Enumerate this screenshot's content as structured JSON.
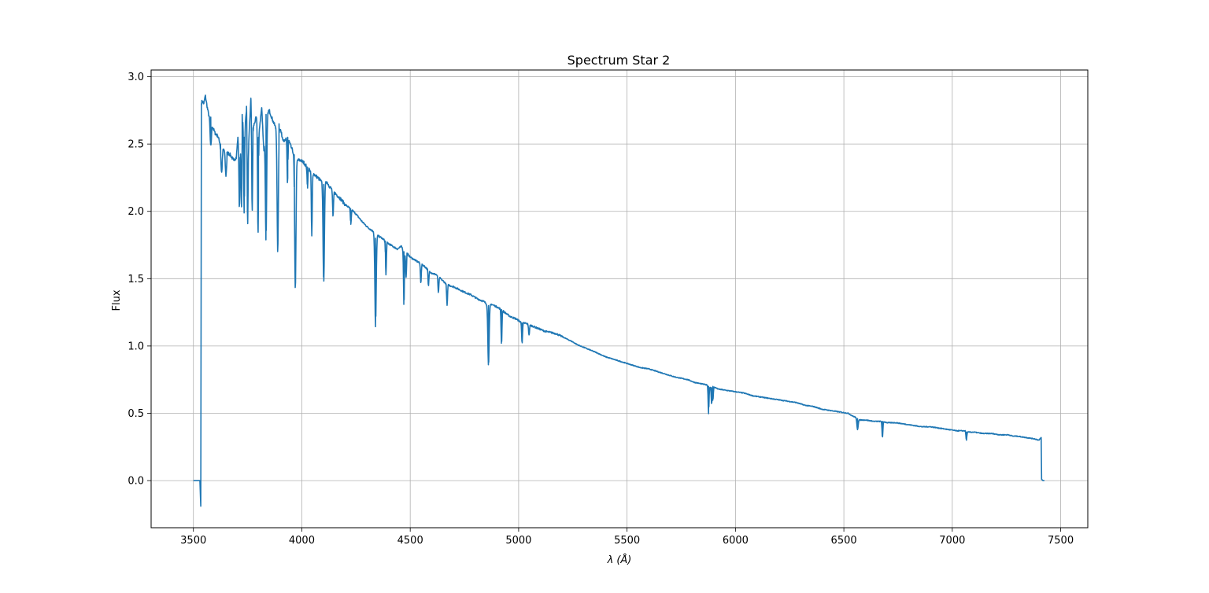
{
  "chart_data": {
    "type": "line",
    "title": "Spectrum Star 2",
    "xlabel_symbol": "λ",
    "xlabel_unit": "(Å)",
    "ylabel": "Flux",
    "xlim": [
      3305,
      7625
    ],
    "ylim": [
      -0.35,
      3.05
    ],
    "xticks": [
      3500,
      4000,
      4500,
      5000,
      5500,
      6000,
      6500,
      7000,
      7500
    ],
    "xtick_labels": [
      "3500",
      "4000",
      "4500",
      "5000",
      "5500",
      "6000",
      "6500",
      "7000",
      "7500"
    ],
    "yticks": [
      0.0,
      0.5,
      1.0,
      1.5,
      2.0,
      2.5,
      3.0
    ],
    "ytick_labels": [
      "0.0",
      "0.5",
      "1.0",
      "1.5",
      "2.0",
      "2.5",
      "3.0"
    ],
    "grid": true,
    "legend": "none",
    "series": [
      {
        "color": "#1f77b4",
        "x": [
          3500,
          3530,
          3534,
          3537,
          3540,
          3548,
          3555,
          3562,
          3570,
          3580,
          3590,
          3600,
          3612,
          3625,
          3640,
          3655,
          3670,
          3685,
          3698,
          3705,
          3715,
          3725,
          3735,
          3745,
          3755,
          3765,
          3775,
          3790,
          3800,
          3815,
          3825,
          3835,
          3850,
          3865,
          3880,
          3895,
          3910,
          3920,
          3935,
          3950,
          3965,
          3980,
          3995,
          4010,
          4025,
          4040,
          4060,
          4080,
          4101,
          4115,
          4130,
          4150,
          4175,
          4200,
          4225,
          4250,
          4280,
          4305,
          4330,
          4340,
          4350,
          4370,
          4385,
          4400,
          4420,
          4440,
          4460,
          4471,
          4485,
          4500,
          4520,
          4540,
          4560,
          4580,
          4600,
          4620,
          4640,
          4660,
          4680,
          4700,
          4725,
          4750,
          4780,
          4810,
          4840,
          4861,
          4875,
          4900,
          4921,
          4935,
          4960,
          4990,
          5016,
          5030,
          5060,
          5090,
          5120,
          5150,
          5175,
          5200,
          5225,
          5250,
          5270,
          5300,
          5330,
          5360,
          5400,
          5440,
          5480,
          5520,
          5560,
          5600,
          5640,
          5680,
          5700,
          5720,
          5750,
          5780,
          5810,
          5840,
          5870,
          5876,
          5890,
          5896,
          5920,
          5960,
          6000,
          6040,
          6080,
          6120,
          6160,
          6200,
          6240,
          6280,
          6300,
          6320,
          6360,
          6400,
          6440,
          6480,
          6520,
          6540,
          6555,
          6563,
          6575,
          6600,
          6640,
          6678,
          6700,
          6740,
          6780,
          6820,
          6860,
          6900,
          6940,
          6980,
          7020,
          7060,
          7065,
          7100,
          7140,
          7180,
          7220,
          7260,
          7280,
          7300,
          7340,
          7380,
          7400,
          7410,
          7412,
          7418,
          7425
        ],
        "y": [
          0.0,
          0.0,
          -0.19,
          2.8,
          2.82,
          2.8,
          2.86,
          2.79,
          2.72,
          2.7,
          2.62,
          2.58,
          2.56,
          2.5,
          2.46,
          2.44,
          2.42,
          2.38,
          2.4,
          2.55,
          2.4,
          2.72,
          2.55,
          2.78,
          2.5,
          2.84,
          2.62,
          2.7,
          2.55,
          2.77,
          2.45,
          2.72,
          2.75,
          2.68,
          2.62,
          2.65,
          2.55,
          2.52,
          2.55,
          2.48,
          2.42,
          2.38,
          2.38,
          2.36,
          2.33,
          2.3,
          2.27,
          2.24,
          2.2,
          2.22,
          2.18,
          2.14,
          2.1,
          2.05,
          2.02,
          1.98,
          1.92,
          1.88,
          1.85,
          1.8,
          1.82,
          1.8,
          1.78,
          1.76,
          1.74,
          1.72,
          1.74,
          1.7,
          1.69,
          1.66,
          1.64,
          1.62,
          1.6,
          1.57,
          1.54,
          1.53,
          1.5,
          1.47,
          1.45,
          1.44,
          1.42,
          1.4,
          1.38,
          1.35,
          1.33,
          1.3,
          1.31,
          1.29,
          1.27,
          1.25,
          1.22,
          1.2,
          1.17,
          1.17,
          1.15,
          1.13,
          1.11,
          1.1,
          1.09,
          1.07,
          1.05,
          1.03,
          1.01,
          0.99,
          0.97,
          0.95,
          0.92,
          0.9,
          0.88,
          0.86,
          0.84,
          0.83,
          0.81,
          0.79,
          0.78,
          0.77,
          0.76,
          0.75,
          0.73,
          0.72,
          0.71,
          0.7,
          0.69,
          0.7,
          0.68,
          0.67,
          0.66,
          0.65,
          0.63,
          0.62,
          0.61,
          0.6,
          0.59,
          0.58,
          0.57,
          0.56,
          0.55,
          0.53,
          0.52,
          0.51,
          0.5,
          0.48,
          0.47,
          0.46,
          0.45,
          0.45,
          0.44,
          0.44,
          0.43,
          0.43,
          0.42,
          0.41,
          0.4,
          0.4,
          0.39,
          0.38,
          0.37,
          0.37,
          0.36,
          0.36,
          0.35,
          0.35,
          0.34,
          0.34,
          0.33,
          0.33,
          0.32,
          0.31,
          0.3,
          0.32,
          0.01,
          0.0,
          0.0
        ]
      }
    ],
    "absorption_lines": [
      {
        "x": 3580,
        "depth": 0.22,
        "width": 3
      },
      {
        "x": 3630,
        "depth": 0.2,
        "width": 3
      },
      {
        "x": 3650,
        "depth": 0.18,
        "width": 3
      },
      {
        "x": 3712,
        "depth": 0.42,
        "width": 2
      },
      {
        "x": 3722,
        "depth": 0.6,
        "width": 2
      },
      {
        "x": 3734,
        "depth": 0.58,
        "width": 2
      },
      {
        "x": 3750,
        "depth": 0.75,
        "width": 2
      },
      {
        "x": 3771,
        "depth": 0.72,
        "width": 2
      },
      {
        "x": 3798,
        "depth": 0.75,
        "width": 2
      },
      {
        "x": 3835,
        "depth": 0.92,
        "width": 3
      },
      {
        "x": 3889,
        "depth": 0.94,
        "width": 3
      },
      {
        "x": 3934,
        "depth": 0.34,
        "width": 2
      },
      {
        "x": 3970,
        "depth": 0.98,
        "width": 3
      },
      {
        "x": 4026,
        "depth": 0.15,
        "width": 2
      },
      {
        "x": 4046,
        "depth": 0.48,
        "width": 2
      },
      {
        "x": 4101,
        "depth": 0.74,
        "width": 3
      },
      {
        "x": 4144,
        "depth": 0.2,
        "width": 2
      },
      {
        "x": 4226,
        "depth": 0.12,
        "width": 2
      },
      {
        "x": 4340,
        "depth": 0.66,
        "width": 3
      },
      {
        "x": 4388,
        "depth": 0.25,
        "width": 2
      },
      {
        "x": 4471,
        "depth": 0.4,
        "width": 2
      },
      {
        "x": 4481,
        "depth": 0.18,
        "width": 2
      },
      {
        "x": 4549,
        "depth": 0.14,
        "width": 2
      },
      {
        "x": 4584,
        "depth": 0.12,
        "width": 2
      },
      {
        "x": 4630,
        "depth": 0.12,
        "width": 2
      },
      {
        "x": 4670,
        "depth": 0.16,
        "width": 2
      },
      {
        "x": 4861,
        "depth": 0.44,
        "width": 3
      },
      {
        "x": 4921,
        "depth": 0.26,
        "width": 2
      },
      {
        "x": 5016,
        "depth": 0.15,
        "width": 2
      },
      {
        "x": 5048,
        "depth": 0.08,
        "width": 2
      },
      {
        "x": 5876,
        "depth": 0.2,
        "width": 2
      },
      {
        "x": 5890,
        "depth": 0.12,
        "width": 2
      },
      {
        "x": 5896,
        "depth": 0.1,
        "width": 2
      },
      {
        "x": 6563,
        "depth": 0.08,
        "width": 3
      },
      {
        "x": 6678,
        "depth": 0.12,
        "width": 2
      },
      {
        "x": 7065,
        "depth": 0.06,
        "width": 2
      }
    ]
  }
}
